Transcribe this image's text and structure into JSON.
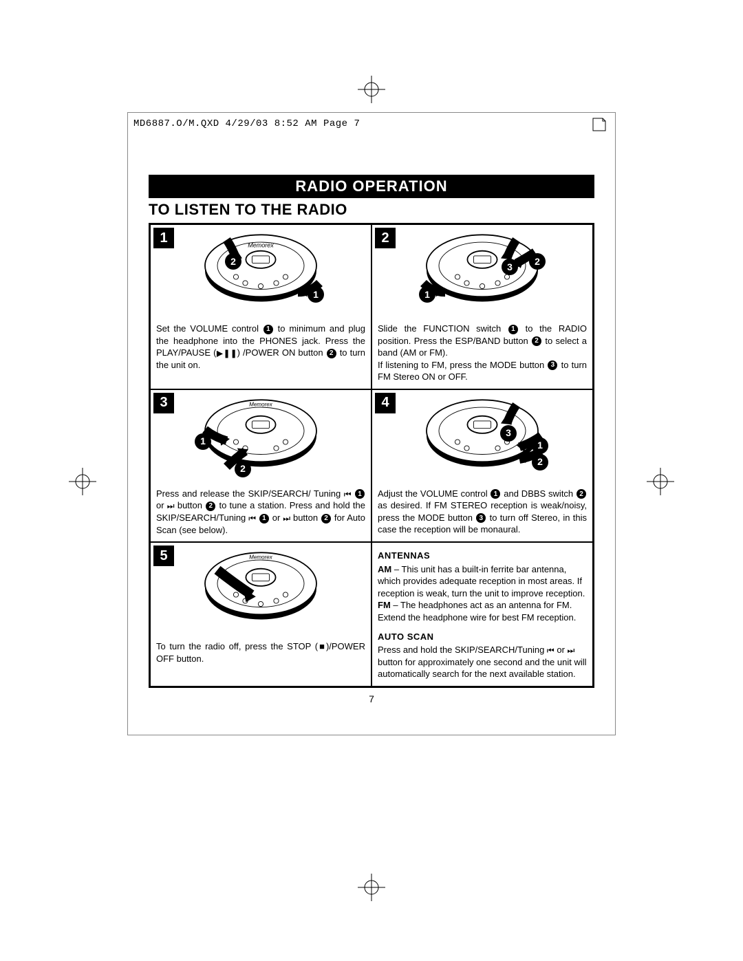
{
  "header_line": "MD6887.O/M.QXD  4/29/03  8:52 AM  Page 7",
  "title_bar": "RADIO OPERATION",
  "subtitle": "TO LISTEN TO THE RADIO",
  "page_number": "7",
  "colors": {
    "text": "#000000",
    "background": "#ffffff",
    "bar_bg": "#000000",
    "bar_text": "#ffffff",
    "border": "#000000"
  },
  "steps": {
    "s1": {
      "num": "1",
      "text_a": "Set the VOLUME control ",
      "text_b": " to minimum and plug the headphone into the PHONES jack. Press the PLAY/PAUSE (",
      "text_c": ") /POWER ON button ",
      "text_d": " to turn the unit on.",
      "callouts": [
        "1",
        "2"
      ]
    },
    "s2": {
      "num": "2",
      "text_a": "Slide the FUNCTION switch ",
      "text_b": " to the RADIO position. Press the ESP/BAND button ",
      "text_c": " to select a band (AM or FM).",
      "text_d": "If listening to FM, press the MODE button ",
      "text_e": " to turn FM Stereo ON or OFF.",
      "callouts": [
        "1",
        "2",
        "3"
      ]
    },
    "s3": {
      "num": "3",
      "text_a": "Press and release the SKIP/SEARCH/ Tuning ",
      "text_b": " or ",
      "text_c": " button ",
      "text_d": " to tune a station. Press and hold the SKIP/SEARCH/Tuning ",
      "text_e": " or ",
      "text_f": " button ",
      "text_g": " for Auto Scan (see below).",
      "callouts": [
        "1",
        "2"
      ]
    },
    "s4": {
      "num": "4",
      "text_a": "Adjust the VOLUME control ",
      "text_b": " and DBBS switch ",
      "text_c": " as desired. If FM STEREO reception is weak/noisy, press the MODE button ",
      "text_d": " to turn off Stereo, in this case the reception will be monaural.",
      "callouts": [
        "1",
        "2",
        "3"
      ]
    },
    "s5": {
      "num": "5",
      "text": "To turn the radio off, press the STOP (■)/POWER OFF button."
    }
  },
  "info": {
    "antennas_title": "ANTENNAS",
    "antennas_am": "AM – This unit has a built-in ferrite bar antenna, which provides adequate reception in most areas. If reception is weak, turn the unit to improve reception.",
    "antennas_fm": "FM – The headphones act as an antenna for FM. Extend the headphone wire for best FM reception.",
    "autoscan_title": "AUTO SCAN",
    "autoscan_text_a": "Press and hold the SKIP/SEARCH/Tuning ",
    "autoscan_text_b": " or ",
    "autoscan_text_c": " button for approximately one second and the unit will automatically search for the next available station."
  },
  "icons": {
    "prev": "⏮",
    "next": "⏭",
    "playpause": "▶❚❚",
    "stop": "■"
  }
}
